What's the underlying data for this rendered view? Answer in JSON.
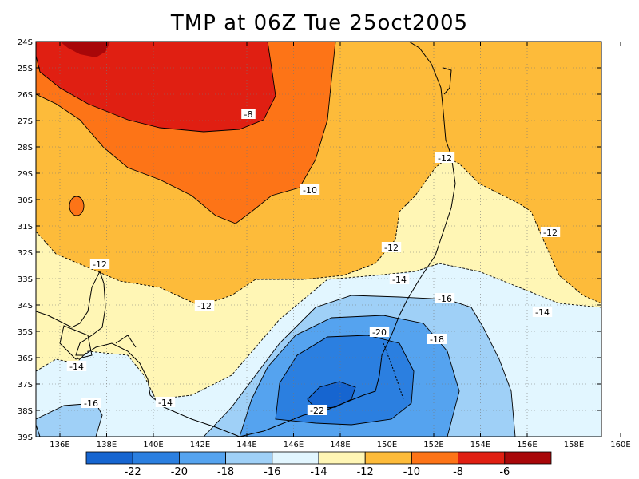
{
  "title": "TMP at 06Z Tue 25oct2005",
  "colors": {
    "c_le22": "#1665d0",
    "c_22_20": "#2b7fe0",
    "c_20_18": "#55a3ef",
    "c_18_16": "#9fd0f7",
    "c_16_14": "#e2f6ff",
    "c_14_12": "#fff6b5",
    "c_12_10": "#fdbb3a",
    "c_10_8": "#fd7417",
    "c_8_6": "#e01f12",
    "c_ge6": "#a80709"
  },
  "lat_ticks": [
    "24S",
    "25S",
    "26S",
    "27S",
    "28S",
    "29S",
    "30S",
    "31S",
    "32S",
    "33S",
    "34S",
    "35S",
    "36S",
    "37S",
    "38S",
    "39S"
  ],
  "lon_ticks": [
    "136E",
    "138E",
    "140E",
    "142E",
    "144E",
    "146E",
    "148E",
    "150E",
    "152E",
    "154E",
    "156E",
    "158E",
    "160E"
  ],
  "contour_labels": [
    "-8",
    "-10",
    "-12",
    "-12",
    "-12",
    "-12",
    "-12",
    "-14",
    "-14",
    "-14",
    "-14",
    "-16",
    "-16",
    "-18",
    "-20",
    "-22"
  ],
  "colorbar": {
    "labels": [
      "-22",
      "-20",
      "-18",
      "-16",
      "-14",
      "-12",
      "-10",
      "-8",
      "-6"
    ]
  }
}
